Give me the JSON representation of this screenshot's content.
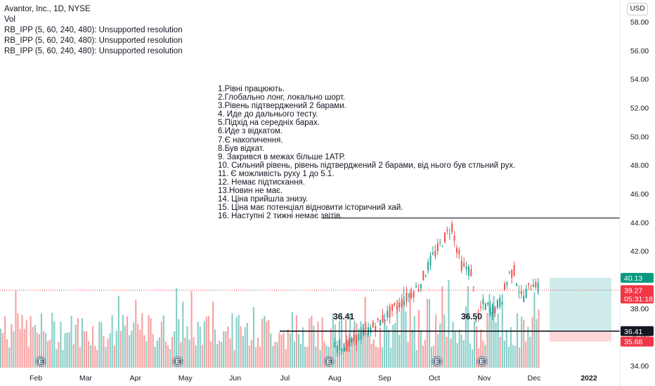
{
  "legend": {
    "title": "Avantor, Inc., 1D, NYSE",
    "lines": [
      "Vol",
      "RB_IPP (5, 60, 240, 480): Unsupported resolution",
      "RB_IPP (5, 60, 240, 480): Unsupported resolution",
      "RB_IPP (5, 60, 240, 480): Unsupported resolution"
    ]
  },
  "currency_button": "USD",
  "notes": [
    "1.Рівні працюють.",
    "2.Глобально лонг, локально шорт.",
    "3.Рівень підтверджений 2 барами.",
    "4. Иде до дальнього тесту.",
    "5.Підхід на середніх барах.",
    "6.Иде з відкатом.",
    "7.Є накопичення.",
    "8.Був відкат.",
    "9. Закрився в межах більше 1АТР.",
    "10. Сильний рівень, рівень підтверджений 2 барами, від нього був стльний рух.",
    "11. Є можливість руху 1 до 5.1.",
    "12. Немає підтискання.",
    "13.Новин не має.",
    "14. Ціна прийшла знизу.",
    "15. Ціна має потенціал відновити історичний хай.",
    "16. Наступні 2 тижні немає звітів."
  ],
  "chart_data": {
    "type": "candlestick",
    "symbol": "Avantor, Inc.",
    "interval": "1D",
    "exchange": "NYSE",
    "y_axis": {
      "ticks": [
        "34.00",
        "36.00",
        "38.00",
        "40.00",
        "42.00",
        "44.00",
        "46.00",
        "48.00",
        "50.00",
        "52.00",
        "54.00",
        "56.00",
        "58.00"
      ],
      "ylim": [
        33.6,
        59.0
      ]
    },
    "x_axis": {
      "ticks": [
        "Feb",
        "Mar",
        "Apr",
        "May",
        "Jun",
        "Jul",
        "Aug",
        "Sep",
        "Oct",
        "Nov",
        "Dec",
        "2022"
      ]
    },
    "horizontal_levels": [
      44.3,
      36.41
    ],
    "level_labels": [
      {
        "text": "36.41",
        "x_month": "Aug",
        "price": 36.41
      },
      {
        "text": "36.50",
        "x_month": "Oct",
        "price": 36.5
      }
    ],
    "price_tags": [
      {
        "text": "40.13",
        "price": 40.13,
        "color": "#089981"
      },
      {
        "text": "39.27",
        "text2": "05:31:18",
        "price": 39.27,
        "color": "#f23645"
      },
      {
        "text": "36.41",
        "price": 36.41,
        "color": "#131722"
      },
      {
        "text": "35.68",
        "price": 35.68,
        "color": "#f23645"
      }
    ],
    "last_price": 39.27,
    "position": {
      "entry": 36.41,
      "target": 40.13,
      "stop": 35.68
    },
    "earnings_markers": [
      "E",
      "E",
      "E",
      "E",
      "E"
    ],
    "price_path": [
      {
        "m": 7.0,
        "p": 35.3
      },
      {
        "m": 7.3,
        "p": 35.5
      },
      {
        "m": 7.6,
        "p": 36.3
      },
      {
        "m": 7.85,
        "p": 36.9
      },
      {
        "m": 8.1,
        "p": 37.7
      },
      {
        "m": 8.4,
        "p": 38.6
      },
      {
        "m": 8.7,
        "p": 39.6
      },
      {
        "m": 8.95,
        "p": 41.5
      },
      {
        "m": 9.2,
        "p": 42.9
      },
      {
        "m": 9.35,
        "p": 43.8
      },
      {
        "m": 9.45,
        "p": 42.2
      },
      {
        "m": 9.55,
        "p": 41.0
      },
      {
        "m": 9.75,
        "p": 40.5
      },
      {
        "m": 9.85,
        "p": 36.8
      },
      {
        "m": 9.95,
        "p": 38.3
      },
      {
        "m": 10.2,
        "p": 37.9
      },
      {
        "m": 10.35,
        "p": 38.6
      },
      {
        "m": 10.5,
        "p": 40.4
      },
      {
        "m": 10.6,
        "p": 40.6
      },
      {
        "m": 10.75,
        "p": 38.7
      },
      {
        "m": 10.9,
        "p": 39.4
      },
      {
        "m": 11.0,
        "p": 40.0
      },
      {
        "m": 11.1,
        "p": 39.27
      }
    ]
  }
}
